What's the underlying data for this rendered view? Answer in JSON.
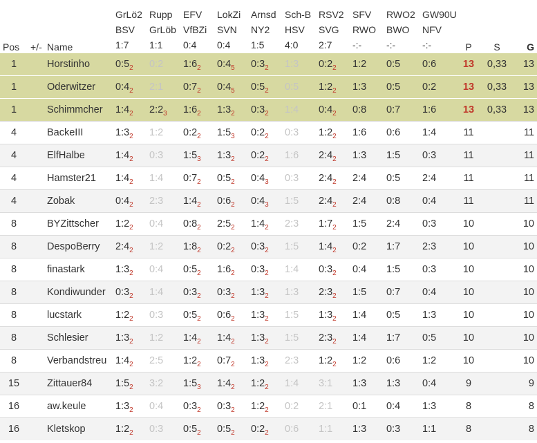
{
  "headers": {
    "pos": "Pos",
    "diff": "+/-",
    "name": "Name",
    "matches": [
      {
        "l1": "GrLö2",
        "l2": "BSV",
        "l3": "1:7"
      },
      {
        "l1": "Rupp",
        "l2": "GrLöb",
        "l3": "1:1"
      },
      {
        "l1": "EFV",
        "l2": "VfBZi",
        "l3": "0:4"
      },
      {
        "l1": "LokZi",
        "l2": "SVN",
        "l3": "0:4"
      },
      {
        "l1": "Arnsd",
        "l2": "NY2",
        "l3": "1:5"
      },
      {
        "l1": "Sch-B",
        "l2": "HSV",
        "l3": "4:0"
      },
      {
        "l1": "RSV2",
        "l2": "SVG",
        "l3": "2:7"
      },
      {
        "l1": "SFV",
        "l2": "RWO",
        "l3": "-:-"
      },
      {
        "l1": "RWO2",
        "l2": "BWO",
        "l3": "-:-"
      },
      {
        "l1": "GW90U",
        "l2": "NFV",
        "l3": "-:-"
      }
    ],
    "p": "P",
    "s": "S",
    "g": "G"
  },
  "colors": {
    "leader_bg": "#d7d9a1",
    "points_red": "#c0392b",
    "faded_text": "#c4c4c4"
  },
  "rows": [
    {
      "pos": "1",
      "name": "Horstinho",
      "top": true,
      "p": "13",
      "s": "0,33",
      "g": "13",
      "tips": [
        {
          "v": "0:5",
          "pts": "2"
        },
        {
          "v": "0:2",
          "faded": true
        },
        {
          "v": "1:6",
          "pts": "2"
        },
        {
          "v": "0:4",
          "pts": "5"
        },
        {
          "v": "0:3",
          "pts": "2"
        },
        {
          "v": "1:3",
          "faded": true
        },
        {
          "v": "0:2",
          "pts": "2"
        },
        {
          "v": "1:2"
        },
        {
          "v": "0:5"
        },
        {
          "v": "0:6"
        }
      ]
    },
    {
      "pos": "1",
      "name": "Oderwitzer",
      "top": true,
      "p": "13",
      "s": "0,33",
      "g": "13",
      "tips": [
        {
          "v": "0:4",
          "pts": "2"
        },
        {
          "v": "2:1",
          "faded": true
        },
        {
          "v": "0:7",
          "pts": "2"
        },
        {
          "v": "0:4",
          "pts": "5"
        },
        {
          "v": "0:5",
          "pts": "2"
        },
        {
          "v": "0:5",
          "faded": true
        },
        {
          "v": "1:2",
          "pts": "2"
        },
        {
          "v": "1:3"
        },
        {
          "v": "0:5"
        },
        {
          "v": "0:2"
        }
      ]
    },
    {
      "pos": "1",
      "name": "Schimmcher",
      "top": true,
      "p": "13",
      "s": "0,33",
      "g": "13",
      "tips": [
        {
          "v": "1:4",
          "pts": "2"
        },
        {
          "v": "2:2",
          "pts": "3"
        },
        {
          "v": "1:6",
          "pts": "2"
        },
        {
          "v": "1:3",
          "pts": "2"
        },
        {
          "v": "0:3",
          "pts": "2"
        },
        {
          "v": "1:4",
          "faded": true
        },
        {
          "v": "0:4",
          "pts": "2"
        },
        {
          "v": "0:8"
        },
        {
          "v": "0:7"
        },
        {
          "v": "1:6"
        }
      ]
    },
    {
      "pos": "4",
      "name": "BackeIII",
      "p": "11",
      "s": "",
      "g": "11",
      "tips": [
        {
          "v": "1:3",
          "pts": "2"
        },
        {
          "v": "1:2",
          "faded": true
        },
        {
          "v": "0:2",
          "pts": "2"
        },
        {
          "v": "1:5",
          "pts": "3"
        },
        {
          "v": "0:2",
          "pts": "2"
        },
        {
          "v": "0:3",
          "faded": true
        },
        {
          "v": "1:2",
          "pts": "2"
        },
        {
          "v": "1:6"
        },
        {
          "v": "0:6"
        },
        {
          "v": "1:4"
        }
      ]
    },
    {
      "pos": "4",
      "name": "ElfHalbe",
      "p": "11",
      "s": "",
      "g": "11",
      "tips": [
        {
          "v": "1:4",
          "pts": "2"
        },
        {
          "v": "0:3",
          "faded": true
        },
        {
          "v": "1:5",
          "pts": "3"
        },
        {
          "v": "1:3",
          "pts": "2"
        },
        {
          "v": "0:2",
          "pts": "2"
        },
        {
          "v": "1:6",
          "faded": true
        },
        {
          "v": "2:4",
          "pts": "2"
        },
        {
          "v": "1:3"
        },
        {
          "v": "1:5"
        },
        {
          "v": "0:3"
        }
      ]
    },
    {
      "pos": "4",
      "name": "Hamster21",
      "p": "11",
      "s": "",
      "g": "11",
      "tips": [
        {
          "v": "1:4",
          "pts": "2"
        },
        {
          "v": "1:4",
          "faded": true
        },
        {
          "v": "0:7",
          "pts": "2"
        },
        {
          "v": "0:5",
          "pts": "2"
        },
        {
          "v": "0:4",
          "pts": "3"
        },
        {
          "v": "0:3",
          "faded": true
        },
        {
          "v": "2:4",
          "pts": "2"
        },
        {
          "v": "2:4"
        },
        {
          "v": "0:5"
        },
        {
          "v": "2:4"
        }
      ]
    },
    {
      "pos": "4",
      "name": "Zobak",
      "p": "11",
      "s": "",
      "g": "11",
      "tips": [
        {
          "v": "0:4",
          "pts": "2"
        },
        {
          "v": "2:3",
          "faded": true
        },
        {
          "v": "1:4",
          "pts": "2"
        },
        {
          "v": "0:6",
          "pts": "2"
        },
        {
          "v": "0:4",
          "pts": "3"
        },
        {
          "v": "1:5",
          "faded": true
        },
        {
          "v": "2:4",
          "pts": "2"
        },
        {
          "v": "2:4"
        },
        {
          "v": "0:8"
        },
        {
          "v": "0:4"
        }
      ]
    },
    {
      "pos": "8",
      "name": "BYZittscher",
      "p": "10",
      "s": "",
      "g": "10",
      "tips": [
        {
          "v": "1:2",
          "pts": "2"
        },
        {
          "v": "0:4",
          "faded": true
        },
        {
          "v": "0:8",
          "pts": "2"
        },
        {
          "v": "2:5",
          "pts": "2"
        },
        {
          "v": "1:4",
          "pts": "2"
        },
        {
          "v": "2:3",
          "faded": true
        },
        {
          "v": "1:7",
          "pts": "2"
        },
        {
          "v": "1:5"
        },
        {
          "v": "2:4"
        },
        {
          "v": "0:3"
        }
      ]
    },
    {
      "pos": "8",
      "name": "DespoBerry",
      "p": "10",
      "s": "",
      "g": "10",
      "tips": [
        {
          "v": "2:4",
          "pts": "2"
        },
        {
          "v": "1:2",
          "faded": true
        },
        {
          "v": "1:8",
          "pts": "2"
        },
        {
          "v": "0:2",
          "pts": "2"
        },
        {
          "v": "0:3",
          "pts": "2"
        },
        {
          "v": "1:5",
          "faded": true
        },
        {
          "v": "1:4",
          "pts": "2"
        },
        {
          "v": "0:2"
        },
        {
          "v": "1:7"
        },
        {
          "v": "2:3"
        }
      ]
    },
    {
      "pos": "8",
      "name": "finastark",
      "p": "10",
      "s": "",
      "g": "10",
      "tips": [
        {
          "v": "1:3",
          "pts": "2"
        },
        {
          "v": "0:4",
          "faded": true
        },
        {
          "v": "0:5",
          "pts": "2"
        },
        {
          "v": "1:6",
          "pts": "2"
        },
        {
          "v": "0:3",
          "pts": "2"
        },
        {
          "v": "1:4",
          "faded": true
        },
        {
          "v": "0:3",
          "pts": "2"
        },
        {
          "v": "0:4"
        },
        {
          "v": "1:5"
        },
        {
          "v": "0:3"
        }
      ]
    },
    {
      "pos": "8",
      "name": "Kondiwunder",
      "p": "10",
      "s": "",
      "g": "10",
      "tips": [
        {
          "v": "0:3",
          "pts": "2"
        },
        {
          "v": "1:4",
          "faded": true
        },
        {
          "v": "0:3",
          "pts": "2"
        },
        {
          "v": "0:3",
          "pts": "2"
        },
        {
          "v": "1:3",
          "pts": "2"
        },
        {
          "v": "1:3",
          "faded": true
        },
        {
          "v": "2:3",
          "pts": "2"
        },
        {
          "v": "1:5"
        },
        {
          "v": "0:7"
        },
        {
          "v": "0:4"
        }
      ]
    },
    {
      "pos": "8",
      "name": "lucstark",
      "p": "10",
      "s": "",
      "g": "10",
      "tips": [
        {
          "v": "1:2",
          "pts": "2"
        },
        {
          "v": "0:3",
          "faded": true
        },
        {
          "v": "0:5",
          "pts": "2"
        },
        {
          "v": "0:6",
          "pts": "2"
        },
        {
          "v": "1:3",
          "pts": "2"
        },
        {
          "v": "1:5",
          "faded": true
        },
        {
          "v": "1:3",
          "pts": "2"
        },
        {
          "v": "1:4"
        },
        {
          "v": "0:5"
        },
        {
          "v": "1:3"
        }
      ]
    },
    {
      "pos": "8",
      "name": "Schlesier",
      "p": "10",
      "s": "",
      "g": "10",
      "tips": [
        {
          "v": "1:3",
          "pts": "2"
        },
        {
          "v": "1:2",
          "faded": true
        },
        {
          "v": "1:4",
          "pts": "2"
        },
        {
          "v": "1:4",
          "pts": "2"
        },
        {
          "v": "1:3",
          "pts": "2"
        },
        {
          "v": "1:5",
          "faded": true
        },
        {
          "v": "2:3",
          "pts": "2"
        },
        {
          "v": "1:4"
        },
        {
          "v": "1:7"
        },
        {
          "v": "0:5"
        }
      ]
    },
    {
      "pos": "8",
      "name": "Verbandstreu",
      "p": "10",
      "s": "",
      "g": "10",
      "tips": [
        {
          "v": "1:4",
          "pts": "2"
        },
        {
          "v": "2:5",
          "faded": true
        },
        {
          "v": "1:2",
          "pts": "2"
        },
        {
          "v": "0:7",
          "pts": "2"
        },
        {
          "v": "1:3",
          "pts": "2"
        },
        {
          "v": "2:3",
          "faded": true
        },
        {
          "v": "1:2",
          "pts": "2"
        },
        {
          "v": "1:2"
        },
        {
          "v": "0:6"
        },
        {
          "v": "1:2"
        }
      ]
    },
    {
      "pos": "15",
      "name": "Zittauer84",
      "p": "9",
      "s": "",
      "g": "9",
      "tips": [
        {
          "v": "1:5",
          "pts": "2"
        },
        {
          "v": "3:2",
          "faded": true
        },
        {
          "v": "1:5",
          "pts": "3"
        },
        {
          "v": "1:4",
          "pts": "2"
        },
        {
          "v": "1:2",
          "pts": "2"
        },
        {
          "v": "1:4",
          "faded": true
        },
        {
          "v": "3:1",
          "faded": true
        },
        {
          "v": "1:3"
        },
        {
          "v": "1:3"
        },
        {
          "v": "0:4"
        }
      ]
    },
    {
      "pos": "16",
      "name": "aw.keule",
      "p": "8",
      "s": "",
      "g": "8",
      "tips": [
        {
          "v": "1:3",
          "pts": "2"
        },
        {
          "v": "0:4",
          "faded": true
        },
        {
          "v": "0:3",
          "pts": "2"
        },
        {
          "v": "0:3",
          "pts": "2"
        },
        {
          "v": "1:2",
          "pts": "2"
        },
        {
          "v": "0:2",
          "faded": true
        },
        {
          "v": "2:1",
          "faded": true
        },
        {
          "v": "0:1"
        },
        {
          "v": "0:4"
        },
        {
          "v": "1:3"
        }
      ]
    },
    {
      "pos": "16",
      "name": "Kletskop",
      "p": "8",
      "s": "",
      "g": "8",
      "tips": [
        {
          "v": "1:2",
          "pts": "2"
        },
        {
          "v": "0:3",
          "faded": true
        },
        {
          "v": "0:5",
          "pts": "2"
        },
        {
          "v": "0:5",
          "pts": "2"
        },
        {
          "v": "0:2",
          "pts": "2"
        },
        {
          "v": "0:6",
          "faded": true
        },
        {
          "v": "1:1",
          "faded": true
        },
        {
          "v": "1:3"
        },
        {
          "v": "0:3"
        },
        {
          "v": "1:1"
        }
      ]
    }
  ]
}
